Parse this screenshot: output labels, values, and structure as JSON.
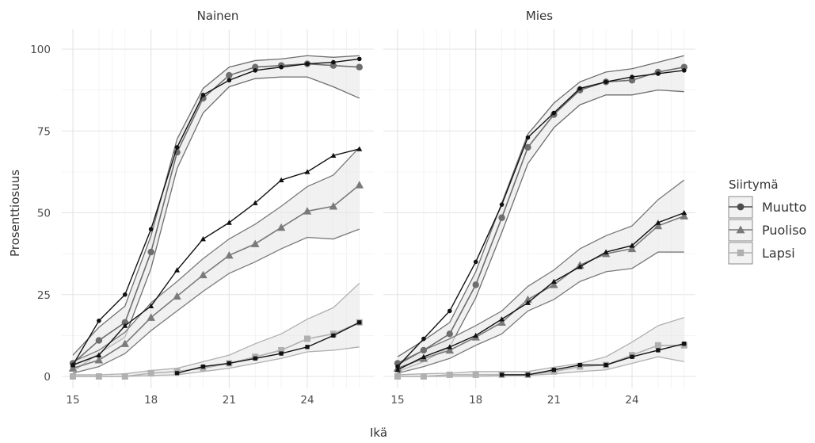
{
  "chart_data": {
    "type": "line",
    "ylabel": "Prosenttiosuus",
    "xlabel": "Ikä",
    "x": [
      15,
      16,
      17,
      18,
      19,
      20,
      21,
      22,
      23,
      24,
      25,
      26
    ],
    "xticks": [
      15,
      18,
      21,
      24
    ],
    "yticks": [
      0,
      25,
      50,
      75,
      100
    ],
    "xlim": [
      14.5,
      26.5
    ],
    "ylim": [
      -3,
      104
    ],
    "grid": true,
    "legend": {
      "title": "Siirtymä",
      "position": "right",
      "entries": [
        {
          "label": "Muutto",
          "shape": "circle",
          "color": "#4d4d4d"
        },
        {
          "label": "Puoliso",
          "shape": "triangle",
          "color": "#7a7a7a"
        },
        {
          "label": "Lapsi",
          "shape": "square",
          "color": "#b0b0b0"
        }
      ]
    },
    "panels": [
      {
        "title": "Nainen",
        "series": [
          {
            "name": "Muutto",
            "shape": "circle",
            "color": "#6e6e6e",
            "values": [
              4,
              11,
              16.5,
              38,
              68.5,
              85,
              92,
              94.5,
              95,
              95.5,
              95,
              94.5
            ],
            "lower": [
              1.5,
              7,
              12,
              33,
              63.5,
              80.5,
              88.5,
              91,
              91.5,
              91.5,
              88.5,
              85
            ],
            "upper": [
              6.5,
              15,
              21.5,
              43,
              72.5,
              88,
              94.5,
              96.5,
              97,
              98,
              97.5,
              98
            ]
          },
          {
            "name": "Puoliso",
            "shape": "triangle",
            "color": "#7a7a7a",
            "values": [
              2.5,
              5,
              10,
              18,
              24.5,
              31,
              37,
              40.5,
              45.5,
              50.5,
              52,
              58.5
            ],
            "lower": [
              1,
              3,
              7,
              14,
              20,
              26,
              31.5,
              35,
              39,
              42.5,
              42,
              45
            ],
            "upper": [
              4.5,
              8,
              13.5,
              22.5,
              29,
              36,
              42,
              46.5,
              52,
              58,
              61.5,
              70
            ]
          },
          {
            "name": "Lapsi",
            "shape": "square",
            "color": "#b0b0b0",
            "values": [
              0,
              0,
              0,
              1,
              1.5,
              2.5,
              4,
              6,
              8,
              11.5,
              13,
              16.5
            ],
            "lower": [
              0,
              0,
              0,
              0.3,
              0.5,
              1.5,
              2.5,
              4,
              5.5,
              7.5,
              8,
              9
            ],
            "upper": [
              0.5,
              0.5,
              0.8,
              1.8,
              2.5,
              4.5,
              6.5,
              10,
              13,
              17.5,
              21,
              28.5
            ]
          }
        ],
        "reference": [
          {
            "name": "Muutto-ref",
            "shape": "circle",
            "values": [
              3.5,
              17,
              25,
              45,
              70,
              86,
              90.5,
              93.5,
              94.5,
              95.5,
              96,
              97
            ]
          },
          {
            "name": "Puoliso-ref",
            "shape": "triangle",
            "values": [
              3.5,
              6.5,
              15.5,
              21.5,
              32.5,
              42,
              47,
              53,
              60,
              62.5,
              67.5,
              69.5
            ]
          },
          {
            "name": "Lapsi-ref",
            "shape": "square",
            "start": 4,
            "values": [
              null,
              null,
              null,
              null,
              1,
              3,
              4,
              5.5,
              7,
              9,
              12.5,
              16.5
            ]
          }
        ]
      },
      {
        "title": "Mies",
        "series": [
          {
            "name": "Muutto",
            "shape": "circle",
            "color": "#6e6e6e",
            "values": [
              4,
              8,
              13,
              28,
              48.5,
              70,
              80,
              87.5,
              90,
              90.5,
              93,
              94.5
            ],
            "lower": [
              1.5,
              4.5,
              9,
              24,
              44,
              65,
              76,
              83,
              86,
              86,
              87.5,
              87
            ],
            "upper": [
              6,
              11,
              16.5,
              32,
              53,
              74,
              83.5,
              90,
              93,
              94,
              96,
              98
            ]
          },
          {
            "name": "Puoliso",
            "shape": "triangle",
            "color": "#7a7a7a",
            "values": [
              2.5,
              5.5,
              8,
              12,
              16.5,
              23.5,
              28,
              34,
              37.5,
              39,
              46,
              49
            ],
            "lower": [
              1,
              3,
              5.5,
              9.5,
              13,
              20,
              23.5,
              29,
              32,
              33,
              38,
              38
            ],
            "upper": [
              3.5,
              8,
              11.5,
              15.5,
              20,
              27.5,
              32.5,
              39,
              43,
              46,
              54,
              60
            ]
          },
          {
            "name": "Lapsi",
            "shape": "square",
            "color": "#b0b0b0",
            "values": [
              0,
              0,
              0.5,
              0.5,
              0.5,
              0.5,
              1.5,
              3,
              3.5,
              6.5,
              9.5,
              9.5
            ],
            "lower": [
              0,
              0,
              0,
              0,
              0.2,
              0.3,
              0.8,
              1.5,
              2,
              4,
              6,
              4.5
            ],
            "upper": [
              0.5,
              0.8,
              1,
              1.5,
              1.5,
              1.5,
              2.8,
              4,
              6,
              10.5,
              15.5,
              18
            ]
          }
        ],
        "reference": [
          {
            "name": "Muutto-ref",
            "shape": "circle",
            "values": [
              3,
              11.5,
              20,
              35,
              52.5,
              73,
              80.5,
              88,
              90,
              91.5,
              92.5,
              93.5
            ]
          },
          {
            "name": "Puoliso-ref",
            "shape": "triangle",
            "values": [
              2,
              6,
              9,
              12.5,
              17.5,
              22.5,
              29,
              33.5,
              38,
              40,
              47,
              50
            ]
          },
          {
            "name": "Lapsi-ref",
            "shape": "square",
            "start": 4,
            "values": [
              null,
              null,
              null,
              null,
              0.5,
              0.5,
              2,
              3.5,
              3.5,
              6,
              8,
              10
            ]
          }
        ]
      }
    ]
  }
}
